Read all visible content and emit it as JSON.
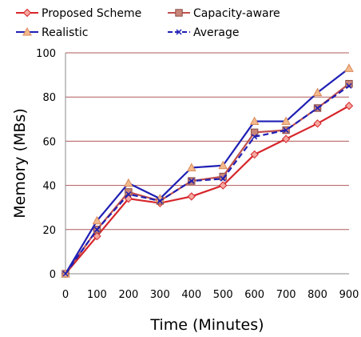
{
  "chart_data": {
    "type": "line",
    "title": "",
    "xlabel": "Time (Minutes)",
    "ylabel": "Memory (MBs)",
    "x": [
      0,
      100,
      200,
      300,
      400,
      500,
      600,
      700,
      800,
      900
    ],
    "xlim": [
      0,
      900
    ],
    "ylim": [
      0,
      100
    ],
    "yticks": [
      0,
      20,
      40,
      60,
      80,
      100
    ],
    "xticks": [
      0,
      100,
      200,
      300,
      400,
      500,
      600,
      700,
      800,
      900
    ],
    "grid": "horizontal",
    "legend_position": "top",
    "series": [
      {
        "name": "Proposed Scheme",
        "values": [
          0,
          17,
          34,
          32,
          35,
          40,
          54,
          61,
          68,
          76
        ],
        "color": "#d6262b",
        "marker": "diamond",
        "dashed": false
      },
      {
        "name": "Capacity-aware",
        "values": [
          0,
          20,
          37,
          33,
          42,
          44,
          64,
          65,
          75,
          86
        ],
        "color": "#c0504d",
        "marker": "square",
        "dashed": false
      },
      {
        "name": "Realistic",
        "values": [
          0,
          24,
          41,
          34,
          48,
          49,
          69,
          69,
          82,
          93
        ],
        "color": "#1f1fb4",
        "marker": "triangle",
        "dashed": false
      },
      {
        "name": "Average",
        "values": [
          0,
          20,
          36,
          33,
          42,
          43,
          62,
          65,
          75,
          85
        ],
        "color": "#1f1fb4",
        "marker": "x",
        "dashed": true
      }
    ]
  }
}
